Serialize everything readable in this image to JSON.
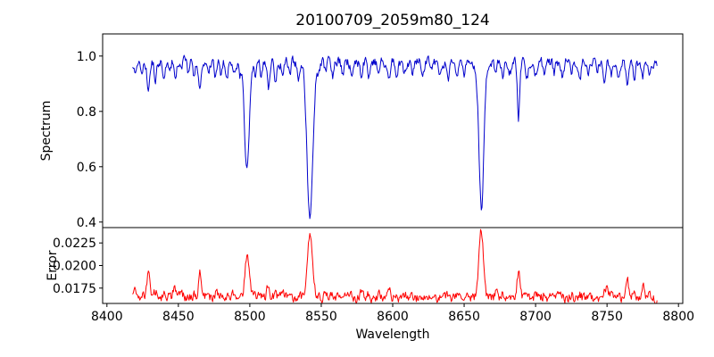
{
  "chart_data": {
    "type": "line",
    "title": "20100709_2059m80_124",
    "xlabel": "Wavelength",
    "x_start": 8418,
    "x_end": 8785,
    "x_step": 0.5,
    "xlim": [
      8397,
      8803
    ],
    "x_ticks": [
      8400,
      8450,
      8500,
      8550,
      8600,
      8650,
      8700,
      8750,
      8800
    ],
    "x_tick_labels": [
      "8400",
      "8450",
      "8500",
      "8550",
      "8600",
      "8650",
      "8700",
      "8750",
      "8800"
    ],
    "seed": 20100709,
    "legend": "none",
    "grid": false,
    "panels": [
      {
        "name": "spectrum",
        "ylabel": "Spectrum",
        "color": "#0000cc",
        "ylim": [
          0.38,
          1.08
        ],
        "y_ticks": [
          0.4,
          0.6,
          0.8,
          1.0
        ],
        "y_tick_labels": [
          "0.4",
          "0.6",
          "0.8",
          "1.0"
        ],
        "baseline": 0.978,
        "noise_amp": 0.016,
        "noise_persist": 0.5,
        "major_lines": [
          {
            "center": 8498.0,
            "depth": 0.395,
            "width": 1.7
          },
          {
            "center": 8542.1,
            "depth": 0.575,
            "width": 2.0
          },
          {
            "center": 8662.1,
            "depth": 0.525,
            "width": 1.7
          }
        ],
        "minor_line_width": 0.8,
        "minor_lines": [
          [
            8420,
            0.05
          ],
          [
            8424,
            0.04
          ],
          [
            8429,
            0.1
          ],
          [
            8434,
            0.07
          ],
          [
            8440,
            0.05
          ],
          [
            8444,
            0.04
          ],
          [
            8448,
            0.07
          ],
          [
            8452,
            0.04
          ],
          [
            8457,
            0.05
          ],
          [
            8461,
            0.05
          ],
          [
            8465,
            0.11
          ],
          [
            8471,
            0.05
          ],
          [
            8476,
            0.06
          ],
          [
            8480,
            0.04
          ],
          [
            8484,
            0.05
          ],
          [
            8489,
            0.04
          ],
          [
            8493,
            0.05
          ],
          [
            8504,
            0.06
          ],
          [
            8508,
            0.05
          ],
          [
            8513,
            0.1
          ],
          [
            8518,
            0.07
          ],
          [
            8523,
            0.05
          ],
          [
            8528,
            0.05
          ],
          [
            8534,
            0.06
          ],
          [
            8548,
            0.04
          ],
          [
            8553,
            0.04
          ],
          [
            8558,
            0.05
          ],
          [
            8565,
            0.05
          ],
          [
            8571,
            0.04
          ],
          [
            8578,
            0.05
          ],
          [
            8583,
            0.06
          ],
          [
            8590,
            0.05
          ],
          [
            8598,
            0.07
          ],
          [
            8603,
            0.04
          ],
          [
            8608,
            0.05
          ],
          [
            8614,
            0.04
          ],
          [
            8621,
            0.06
          ],
          [
            8627,
            0.04
          ],
          [
            8633,
            0.05
          ],
          [
            8639,
            0.05
          ],
          [
            8645,
            0.06
          ],
          [
            8650,
            0.04
          ],
          [
            8672,
            0.06
          ],
          [
            8677,
            0.05
          ],
          [
            8682,
            0.04
          ],
          [
            8688,
            0.2
          ],
          [
            8694,
            0.05
          ],
          [
            8700,
            0.04
          ],
          [
            8706,
            0.05
          ],
          [
            8713,
            0.04
          ],
          [
            8719,
            0.05
          ],
          [
            8725,
            0.04
          ],
          [
            8731,
            0.06
          ],
          [
            8737,
            0.05
          ],
          [
            8743,
            0.04
          ],
          [
            8748,
            0.06
          ],
          [
            8753,
            0.05
          ],
          [
            8758,
            0.04
          ],
          [
            8764,
            0.09
          ],
          [
            8769,
            0.06
          ],
          [
            8775,
            0.05
          ],
          [
            8780,
            0.04
          ]
        ]
      },
      {
        "name": "error",
        "ylabel": "Error",
        "color": "#ff0000",
        "ylim": [
          0.0158,
          0.0242
        ],
        "y_ticks": [
          0.0175,
          0.02,
          0.0225
        ],
        "y_tick_labels": [
          "0.0175",
          "0.0200",
          "0.0225"
        ],
        "baseline": 0.0164,
        "noise_amp": 0.0005,
        "noise_persist": 0.5,
        "minor_peak_scale": 0.008,
        "peaks": [
          [
            8419,
            0.0012,
            1.0
          ],
          [
            8429,
            0.0018,
            1.0
          ],
          [
            8447,
            0.0008,
            0.9
          ],
          [
            8465,
            0.0018,
            1.0
          ],
          [
            8498,
            0.0044,
            1.5
          ],
          [
            8513,
            0.0008,
            1.0
          ],
          [
            8542,
            0.0073,
            1.8
          ],
          [
            8662,
            0.0073,
            1.6
          ],
          [
            8688,
            0.0012,
            0.9
          ],
          [
            8750,
            0.0012,
            1.0
          ],
          [
            8764,
            0.0018,
            1.0
          ],
          [
            8776,
            0.001,
            0.9
          ]
        ]
      }
    ]
  }
}
